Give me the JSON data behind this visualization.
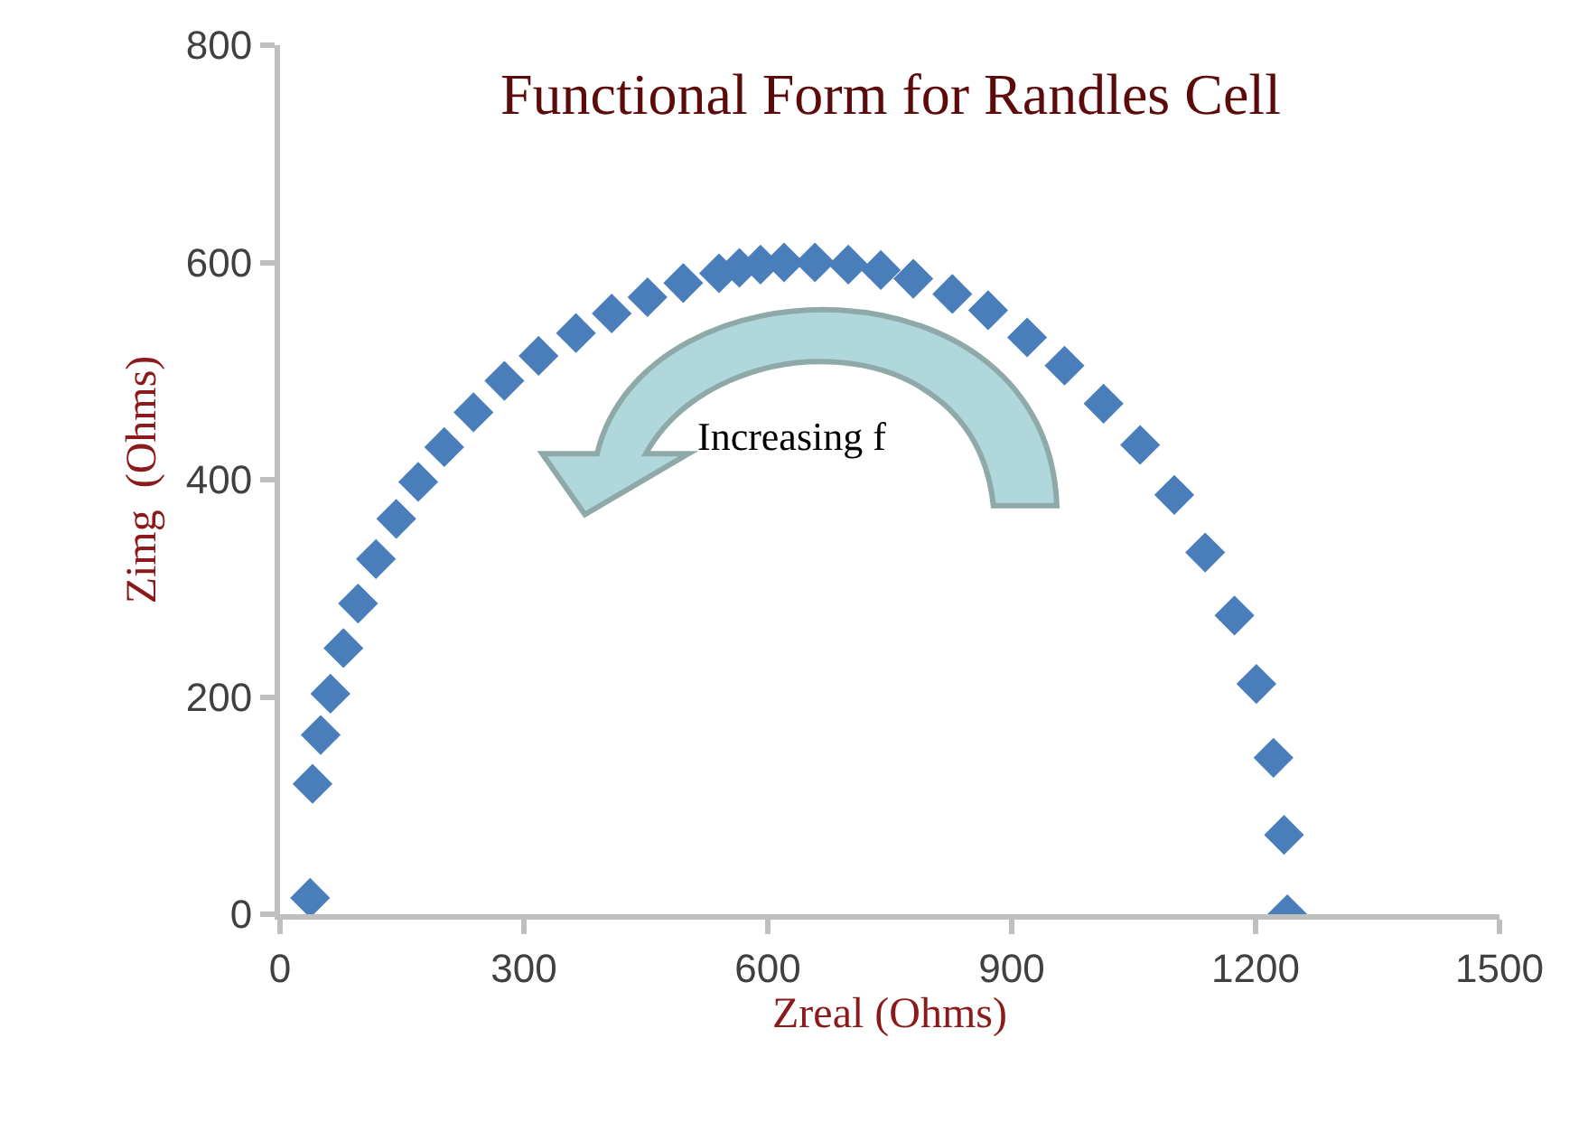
{
  "chart_data": {
    "type": "scatter",
    "title": "Functional Form for Randles Cell",
    "xlabel": "Zreal (Ohms)",
    "ylabel": "Zimg  (Ohms)",
    "annotations": [
      "Increasing f"
    ],
    "series": [
      {
        "color": "#4a7ebb",
        "x": [
          37,
          40,
          50,
          62,
          78,
          96,
          118,
          143,
          170,
          202,
          238,
          276,
          318,
          364,
          408,
          452,
          496,
          540,
          565,
          591,
          620,
          658,
          699,
          739,
          779,
          827,
          871,
          919,
          965,
          1013,
          1058,
          1100,
          1138,
          1174,
          1201,
          1222,
          1235,
          1239
        ],
        "values": [
          15,
          120,
          165,
          203,
          245,
          286,
          327,
          364,
          398,
          430,
          462,
          491,
          514,
          535,
          553,
          568,
          581,
          590,
          595,
          598,
          600,
          600,
          598,
          593,
          585,
          571,
          556,
          531,
          505,
          470,
          432,
          386,
          333,
          275,
          212,
          144,
          73,
          0
        ]
      }
    ],
    "xlim": [
      0,
      1500
    ],
    "xticks": [
      0,
      300,
      600,
      900,
      1200,
      1500
    ],
    "ylim": [
      0,
      800
    ],
    "yticks": [
      0,
      200,
      400,
      600,
      800
    ],
    "marker": "diamond"
  }
}
